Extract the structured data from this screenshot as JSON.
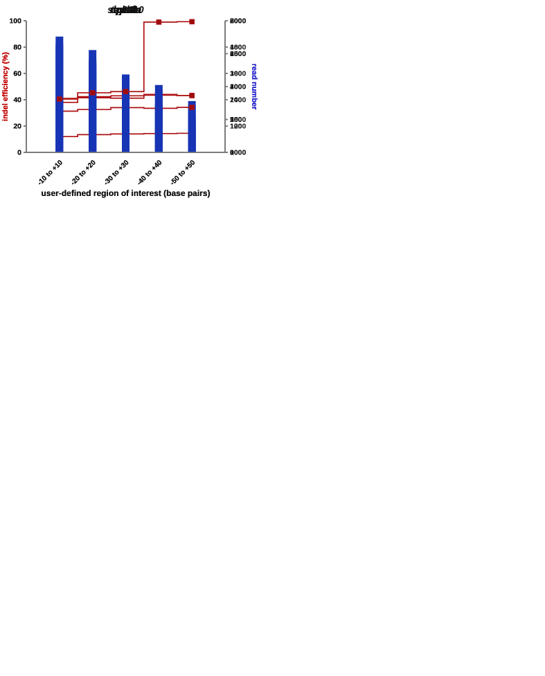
{
  "figure": {
    "background": "#ffffff"
  },
  "colors": {
    "bar": "#1634b4",
    "line": "#ae1013",
    "marker": "#9a0c0f",
    "axis": "#7b7b7b",
    "text": "#121212",
    "left_label": "#c00000",
    "right_label": "#2323c9"
  },
  "shared": {
    "xlabel": "user-defined region of interest (base pairs)",
    "left_axis_label": "indel efficiency (%)",
    "right_axis_label": "read number",
    "categories": [
      "-10 to +10",
      "-20 to +20",
      "-30 to +30",
      "-40 to +40",
      "-50 to +50"
    ]
  },
  "chart_data": [
    {
      "type": "bar+line",
      "title": "slc2a10",
      "categories": [
        "-10 to +10",
        "-20 to +20",
        "-30 to +30",
        "-40 to +40",
        "-50 to +50"
      ],
      "left_axis": {
        "label": "indel efficiency (%)",
        "min": 0,
        "max": 100,
        "ticks": [
          0,
          20,
          40,
          60,
          80,
          100
        ]
      },
      "right_axis": {
        "label": "read number",
        "min": 1000,
        "max": 3000,
        "ticks": [
          1000,
          1500,
          2000,
          2500,
          3000
        ]
      },
      "series": [
        {
          "name": "read number",
          "kind": "bar",
          "axis": "right",
          "values": [
            2600,
            2380,
            2060,
            1735,
            1515
          ]
        },
        {
          "name": "indel efficiency (%)",
          "kind": "line",
          "axis": "left",
          "values": [
            41,
            42.3,
            43,
            43.5,
            43.2
          ]
        }
      ],
      "legend": "none",
      "grid": false
    },
    {
      "type": "bar+line",
      "title": "pls3",
      "categories": [
        "-10 to +10",
        "-20 to +20",
        "-30 to +30",
        "-40 to +40",
        "-50 to +50"
      ],
      "left_axis": {
        "label": "indel efficiency (%)",
        "min": 0,
        "max": 100,
        "ticks": [
          0,
          20,
          40,
          60,
          80,
          100
        ]
      },
      "right_axis": {
        "label": "read number",
        "min": 0,
        "max": 500,
        "ticks": [
          0,
          100,
          200,
          300,
          400,
          500
        ]
      },
      "series": [
        {
          "name": "read number",
          "kind": "bar",
          "axis": "right",
          "values": [
            408,
            337,
            296,
            256,
            195
          ]
        },
        {
          "name": "indel efficiency (%)",
          "kind": "line",
          "axis": "left",
          "values": [
            38,
            41.5,
            41.2,
            44,
            43.2
          ]
        }
      ],
      "legend": "none",
      "grid": false
    },
    {
      "type": "bar+line",
      "title": "tapt1a",
      "categories": [
        "-10 to +10",
        "-20 to +20",
        "-30 to +30",
        "-40 to +40",
        "-50 to +50"
      ],
      "left_axis": {
        "label": "indel efficiency (%)",
        "min": 0,
        "max": 100,
        "ticks": [
          0,
          20,
          40,
          60,
          80,
          100
        ]
      },
      "right_axis": {
        "label": "read number",
        "min": 0,
        "max": 2000,
        "ticks": [
          0,
          500,
          1000,
          1500,
          2000
        ]
      },
      "series": [
        {
          "name": "read number",
          "kind": "bar",
          "axis": "right",
          "values": [
            1665,
            1555,
            1075,
            935,
            720
          ]
        },
        {
          "name": "indel efficiency (%)",
          "kind": "line",
          "axis": "left",
          "values": [
            31.3,
            32.6,
            34,
            33.5,
            34.2
          ]
        }
      ],
      "legend": "none",
      "grid": false
    },
    {
      "type": "bar+line",
      "title": "myt1la",
      "categories": [
        "-10 to +10",
        "-20 to +20",
        "-30 to +30",
        "-40 to +40",
        "-50 to +50"
      ],
      "left_axis": {
        "label": "indel efficiency (%)",
        "min": 0,
        "max": 100,
        "ticks": [
          0,
          20,
          40,
          60,
          80,
          100
        ]
      },
      "right_axis": {
        "label": "read number",
        "min": 1000,
        "max": 2000,
        "ticks": [
          1000,
          1200,
          1400,
          1600,
          1800,
          2000
        ]
      },
      "series": [
        {
          "name": "read number",
          "kind": "bar",
          "axis": "right",
          "values": [
            1880,
            1705,
            1510,
            1330,
            1205
          ]
        },
        {
          "name": "indel efficiency (%)",
          "kind": "line",
          "axis": "left",
          "values": [
            12,
            13.5,
            14,
            14.3,
            14.5
          ]
        }
      ],
      "legend": "none",
      "grid": false
    },
    {
      "type": "bar+line",
      "title": "tprkb",
      "categories": [
        "-10 to +10",
        "-20 to +20",
        "-30 to +30",
        "-40 to +40",
        "-50 to +50"
      ],
      "left_axis": {
        "label": "indel efficiency (%)",
        "min": 0,
        "max": 100,
        "ticks": [
          0,
          20,
          40,
          60,
          80,
          100
        ]
      },
      "right_axis": {
        "label": "read number",
        "min": 0,
        "max": 800,
        "ticks": [
          0,
          200,
          400,
          600,
          800
        ]
      },
      "series": [
        {
          "name": "read number",
          "kind": "bar",
          "axis": "right",
          "values": [
            575,
            483,
            371,
            295,
            234
          ]
        },
        {
          "name": "indel efficiency (%)",
          "kind": "line",
          "axis": "left",
          "values": [
            40.5,
            45.3,
            46.2,
            99,
            99.3
          ]
        }
      ],
      "legend": "none",
      "grid": false
    }
  ]
}
